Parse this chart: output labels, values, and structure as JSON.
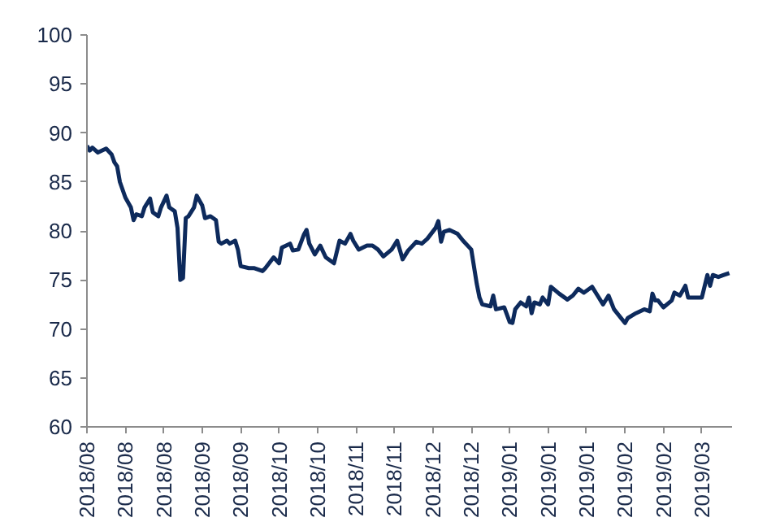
{
  "chart_data": {
    "type": "line",
    "grid": false,
    "marker": "none",
    "line_style": "solid",
    "ylim": [
      60,
      100
    ],
    "yticks": [
      60,
      65,
      70,
      75,
      80,
      85,
      90,
      95,
      100
    ],
    "xlim": [
      "2018-08-01",
      "2019-03-24"
    ],
    "xticks": [
      {
        "value": "2018-08-01",
        "label": "2018/08"
      },
      {
        "value": "2018-08-15",
        "label": "2018/08"
      },
      {
        "value": "2018-08-29",
        "label": "2018/08"
      },
      {
        "value": "2018-09-12",
        "label": "2018/09"
      },
      {
        "value": "2018-09-26",
        "label": "2018/09"
      },
      {
        "value": "2018-10-10",
        "label": "2018/10"
      },
      {
        "value": "2018-10-24",
        "label": "2018/10"
      },
      {
        "value": "2018-11-07",
        "label": "2018/11"
      },
      {
        "value": "2018-11-21",
        "label": "2018/11"
      },
      {
        "value": "2018-12-05",
        "label": "2018/12"
      },
      {
        "value": "2018-12-19",
        "label": "2018/12"
      },
      {
        "value": "2019-01-02",
        "label": "2019/01"
      },
      {
        "value": "2019-01-16",
        "label": "2019/01"
      },
      {
        "value": "2019-01-30",
        "label": "2019/01"
      },
      {
        "value": "2019-02-13",
        "label": "2019/02"
      },
      {
        "value": "2019-02-27",
        "label": "2019/02"
      },
      {
        "value": "2019-03-13",
        "label": "2019/03"
      }
    ],
    "series": [
      {
        "color": "#0d2a5c",
        "x": [
          "2018-08-01",
          "2018-08-02",
          "2018-08-03",
          "2018-08-05",
          "2018-08-08",
          "2018-08-10",
          "2018-08-11",
          "2018-08-12",
          "2018-08-13",
          "2018-08-15",
          "2018-08-16",
          "2018-08-17",
          "2018-08-18",
          "2018-08-19",
          "2018-08-21",
          "2018-08-22",
          "2018-08-24",
          "2018-08-25",
          "2018-08-27",
          "2018-08-28",
          "2018-08-30",
          "2018-08-31",
          "2018-09-02",
          "2018-09-03",
          "2018-09-04",
          "2018-09-05",
          "2018-09-06",
          "2018-09-07",
          "2018-09-09",
          "2018-09-10",
          "2018-09-12",
          "2018-09-13",
          "2018-09-15",
          "2018-09-17",
          "2018-09-18",
          "2018-09-19",
          "2018-09-21",
          "2018-09-22",
          "2018-09-24",
          "2018-09-25",
          "2018-09-26",
          "2018-09-29",
          "2018-10-01",
          "2018-10-04",
          "2018-10-05",
          "2018-10-08",
          "2018-10-10",
          "2018-10-11",
          "2018-10-14",
          "2018-10-15",
          "2018-10-17",
          "2018-10-19",
          "2018-10-20",
          "2018-10-21",
          "2018-10-23",
          "2018-10-25",
          "2018-10-27",
          "2018-10-30",
          "2018-11-01",
          "2018-11-03",
          "2018-11-05",
          "2018-11-06",
          "2018-11-08",
          "2018-11-11",
          "2018-11-13",
          "2018-11-15",
          "2018-11-17",
          "2018-11-20",
          "2018-11-22",
          "2018-11-24",
          "2018-11-26",
          "2018-11-29",
          "2018-12-01",
          "2018-12-03",
          "2018-12-06",
          "2018-12-07",
          "2018-12-08",
          "2018-12-09",
          "2018-12-11",
          "2018-12-14",
          "2018-12-16",
          "2018-12-19",
          "2018-12-21",
          "2018-12-22",
          "2018-12-23",
          "2018-12-26",
          "2018-12-27",
          "2018-12-28",
          "2018-12-31",
          "2019-01-02",
          "2019-01-03",
          "2019-01-04",
          "2019-01-06",
          "2019-01-08",
          "2019-01-09",
          "2019-01-10",
          "2019-01-11",
          "2019-01-13",
          "2019-01-14",
          "2019-01-16",
          "2019-01-17",
          "2019-01-20",
          "2019-01-23",
          "2019-01-25",
          "2019-01-27",
          "2019-01-29",
          "2019-02-01",
          "2019-02-03",
          "2019-02-05",
          "2019-02-07",
          "2019-02-09",
          "2019-02-13",
          "2019-02-14",
          "2019-02-17",
          "2019-02-20",
          "2019-02-22",
          "2019-02-23",
          "2019-02-24",
          "2019-02-25",
          "2019-02-27",
          "2019-03-02",
          "2019-03-03",
          "2019-03-05",
          "2019-03-07",
          "2019-03-08",
          "2019-03-09",
          "2019-03-13",
          "2019-03-15",
          "2019-03-16",
          "2019-03-17",
          "2019-03-19",
          "2019-03-21",
          "2019-03-23"
        ],
        "values": [
          88.7,
          88.2,
          88.5,
          88.0,
          88.4,
          87.8,
          87.0,
          86.6,
          85.0,
          83.4,
          82.9,
          82.4,
          81.1,
          81.7,
          81.5,
          82.4,
          83.3,
          81.9,
          81.5,
          82.4,
          83.6,
          82.4,
          82.0,
          80.3,
          75.0,
          75.2,
          81.3,
          81.5,
          82.4,
          83.6,
          82.6,
          81.3,
          81.5,
          81.1,
          78.9,
          78.7,
          79.0,
          78.7,
          79.0,
          78.1,
          76.4,
          76.2,
          76.2,
          75.9,
          76.2,
          77.3,
          76.7,
          78.3,
          78.7,
          78.0,
          78.1,
          79.6,
          80.1,
          78.7,
          77.6,
          78.5,
          77.3,
          76.7,
          79.0,
          78.7,
          79.7,
          79.0,
          78.1,
          78.5,
          78.5,
          78.1,
          77.4,
          78.1,
          79.0,
          77.1,
          78.0,
          78.9,
          78.7,
          79.2,
          80.3,
          81.0,
          78.9,
          79.9,
          80.1,
          79.7,
          79.0,
          78.1,
          74.6,
          73.2,
          72.5,
          72.3,
          73.4,
          72.0,
          72.2,
          70.7,
          70.6,
          72.0,
          72.7,
          72.3,
          73.2,
          71.6,
          72.7,
          72.5,
          73.2,
          72.5,
          74.3,
          73.6,
          73.0,
          73.4,
          74.1,
          73.7,
          74.3,
          73.4,
          72.5,
          73.4,
          72.0,
          70.6,
          71.1,
          71.6,
          72.0,
          71.8,
          73.6,
          72.9,
          72.9,
          72.2,
          72.9,
          73.7,
          73.4,
          74.4,
          73.2,
          73.2,
          73.2,
          75.5,
          74.4,
          75.5,
          75.3,
          75.5,
          75.7
        ]
      }
    ]
  }
}
